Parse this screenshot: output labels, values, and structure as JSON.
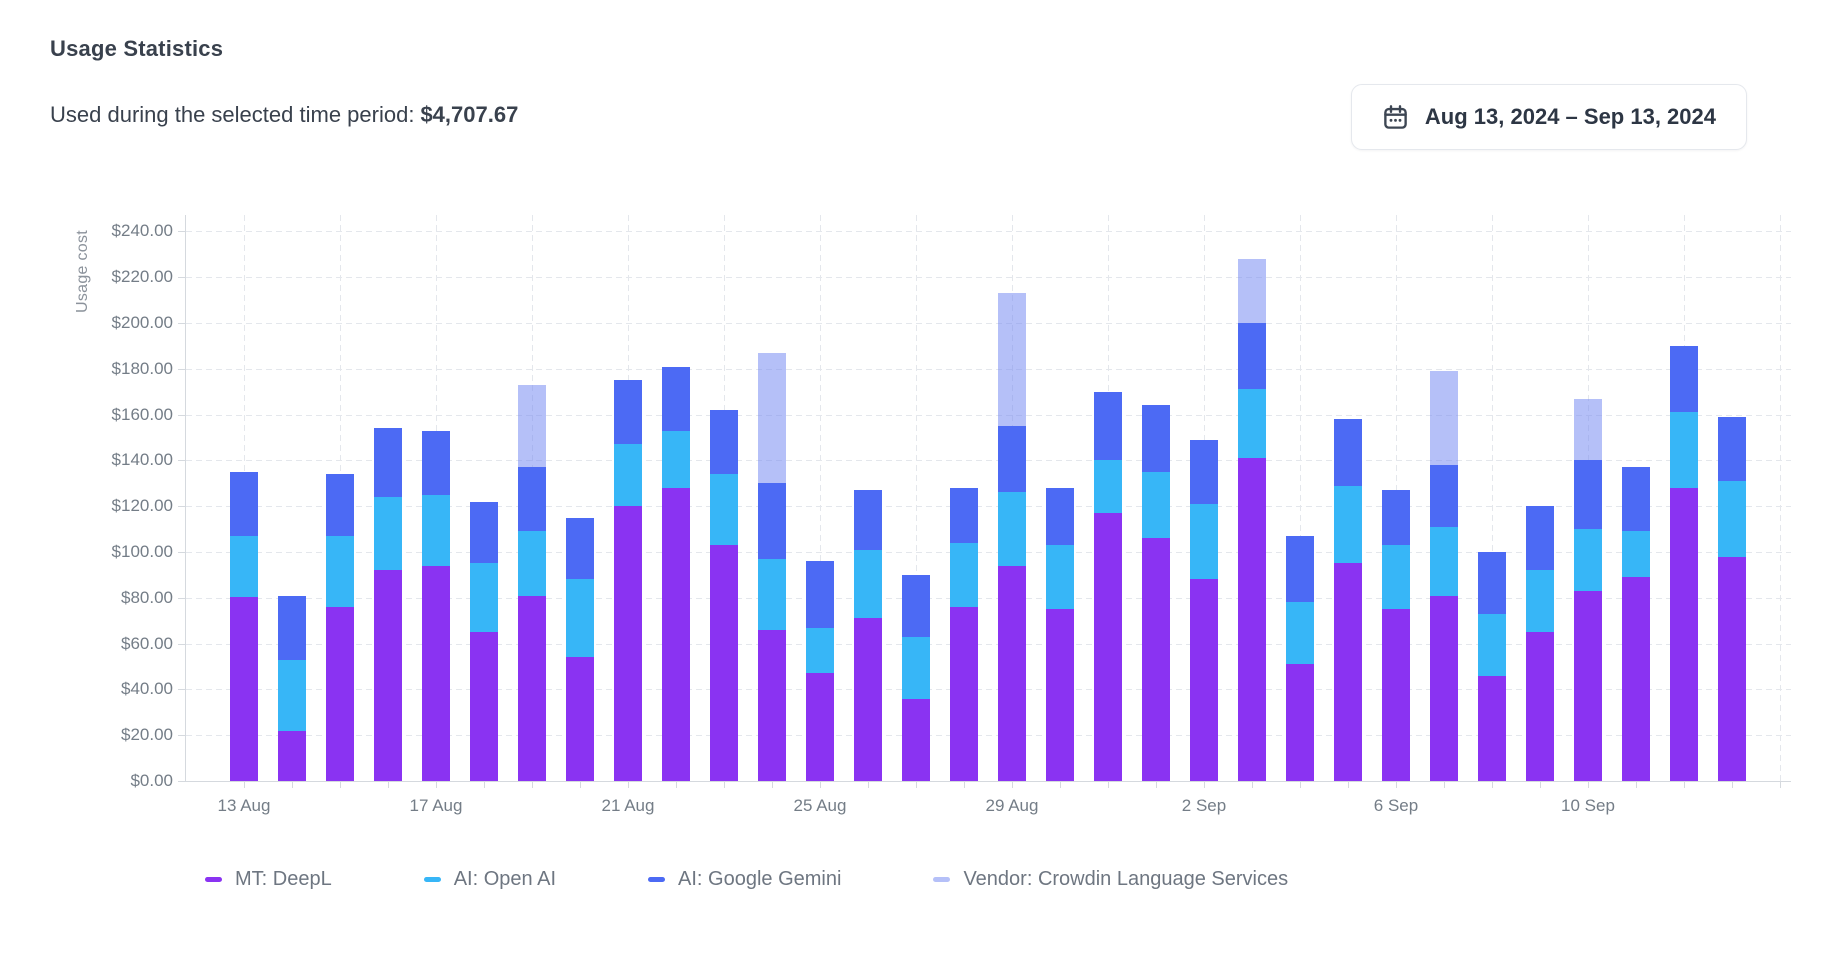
{
  "header": {
    "title": "Usage Statistics"
  },
  "summary": {
    "label": "Used during the selected time period:",
    "amount": "$4,707.67"
  },
  "date_picker": {
    "icon": "calendar-icon",
    "label": "Aug 13, 2024 – Sep 13, 2024"
  },
  "chart_data": {
    "type": "bar",
    "stacked": true,
    "title": "Usage Statistics",
    "xlabel": "",
    "ylabel": "Usage cost",
    "ylim": [
      0,
      240
    ],
    "ytick_step": 20,
    "ytick_labels": [
      "$0.00",
      "$20.00",
      "$40.00",
      "$60.00",
      "$80.00",
      "$100.00",
      "$120.00",
      "$140.00",
      "$160.00",
      "$180.00",
      "$200.00",
      "$220.00",
      "$240.00"
    ],
    "grid": true,
    "legend_position": "bottom",
    "categories": [
      "13 Aug",
      "14 Aug",
      "15 Aug",
      "16 Aug",
      "17 Aug",
      "18 Aug",
      "19 Aug",
      "20 Aug",
      "21 Aug",
      "22 Aug",
      "23 Aug",
      "24 Aug",
      "25 Aug",
      "26 Aug",
      "27 Aug",
      "28 Aug",
      "29 Aug",
      "30 Aug",
      "31 Aug",
      "1 Sep",
      "2 Sep",
      "3 Sep",
      "4 Sep",
      "5 Sep",
      "6 Sep",
      "7 Sep",
      "8 Sep",
      "9 Sep",
      "10 Sep",
      "11 Sep",
      "12 Sep",
      "13 Sep"
    ],
    "xtick_positions": [
      0,
      4,
      8,
      12,
      16,
      20,
      24,
      28
    ],
    "xtick_labels": [
      "13 Aug",
      "17 Aug",
      "21 Aug",
      "25 Aug",
      "29 Aug",
      "2 Sep",
      "6 Sep",
      "10 Sep"
    ],
    "series": [
      {
        "name": "MT: DeepL",
        "color": "#8a33f2",
        "values": [
          80.5,
          22,
          76,
          92,
          94,
          65,
          81,
          54,
          120,
          128,
          103,
          66,
          47,
          71,
          36,
          76,
          94,
          75,
          117,
          106,
          88,
          141,
          51,
          95,
          75,
          81,
          46,
          65,
          83,
          89,
          128,
          98
        ]
      },
      {
        "name": "AI: Open AI",
        "color": "#37b6f7",
        "values": [
          26.5,
          31,
          31,
          32,
          31,
          30,
          28,
          34,
          27,
          25,
          31,
          31,
          20,
          30,
          27,
          28,
          32,
          28,
          23,
          29,
          33,
          30,
          27,
          34,
          28,
          30,
          27,
          27,
          27,
          20,
          33,
          33
        ]
      },
      {
        "name": "AI: Google Gemini",
        "color": "#4c6af4",
        "values": [
          28,
          28,
          27,
          30,
          28,
          27,
          28,
          27,
          28,
          28,
          28,
          33,
          29,
          26,
          27,
          24,
          29,
          25,
          30,
          29,
          28,
          29,
          29,
          29,
          24,
          27,
          27,
          28,
          30,
          28,
          29,
          28
        ]
      },
      {
        "name": "Vendor: Crowdin Language Services",
        "color": "rgba(121,140,242,0.55)",
        "values": [
          0,
          0,
          0,
          0,
          0,
          0,
          36,
          0,
          0,
          0,
          0,
          57,
          0,
          0,
          0,
          0,
          58,
          0,
          0,
          0,
          0,
          28,
          0,
          0,
          0,
          41,
          0,
          0,
          27,
          0,
          0,
          0
        ]
      }
    ]
  }
}
